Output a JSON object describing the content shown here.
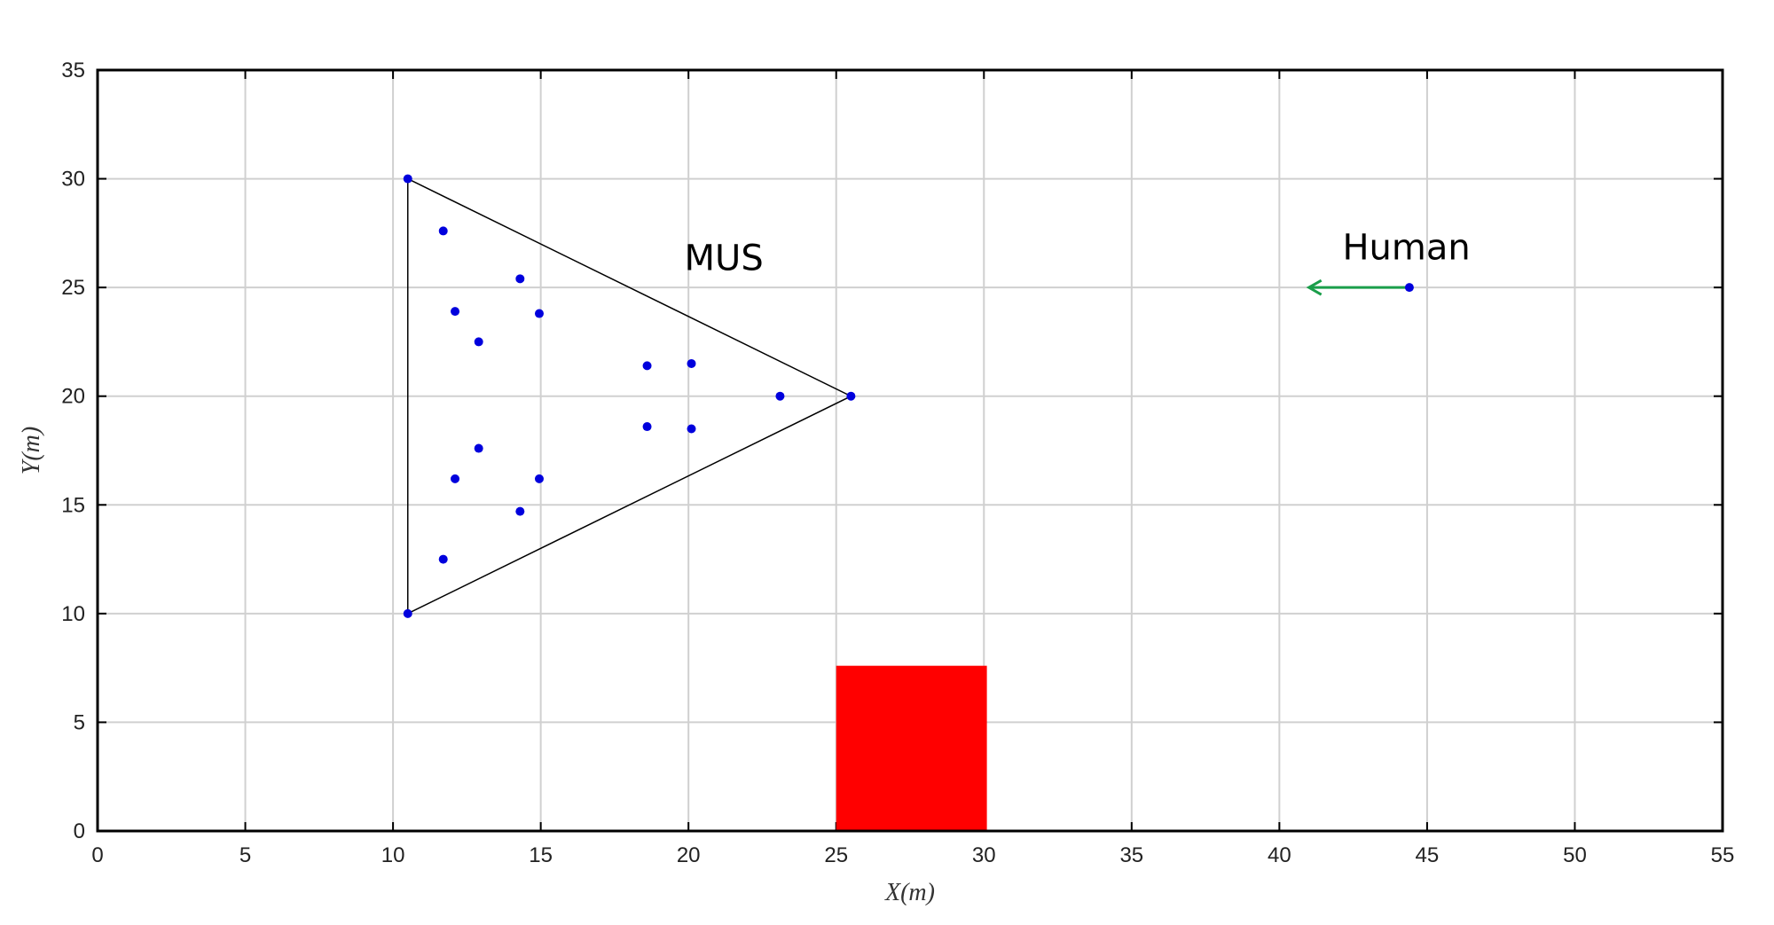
{
  "chart_data": {
    "type": "scatter",
    "title": "",
    "xlabel": "X(m)",
    "ylabel": "Y(m)",
    "xlim": [
      0,
      55
    ],
    "ylim": [
      0,
      35
    ],
    "xticks": [
      0,
      5,
      10,
      15,
      20,
      25,
      30,
      35,
      40,
      45,
      50,
      55
    ],
    "yticks": [
      0,
      5,
      10,
      15,
      20,
      25,
      30,
      35
    ],
    "grid": true,
    "colors": {
      "points": "#0000dd",
      "formation_outline": "#000000",
      "obstacle": "#ff0000",
      "arrow": "#1a9e4a",
      "grid": "#d0d0d0",
      "axes": "#000000"
    },
    "points": [
      {
        "x": 10.5,
        "y": 30.0
      },
      {
        "x": 11.7,
        "y": 27.6
      },
      {
        "x": 14.3,
        "y": 25.4
      },
      {
        "x": 12.1,
        "y": 23.9
      },
      {
        "x": 14.95,
        "y": 23.8
      },
      {
        "x": 12.9,
        "y": 22.5
      },
      {
        "x": 18.6,
        "y": 21.4
      },
      {
        "x": 20.1,
        "y": 21.5
      },
      {
        "x": 23.1,
        "y": 20.0
      },
      {
        "x": 25.5,
        "y": 20.0
      },
      {
        "x": 18.6,
        "y": 18.6
      },
      {
        "x": 20.1,
        "y": 18.5
      },
      {
        "x": 12.9,
        "y": 17.6
      },
      {
        "x": 12.1,
        "y": 16.2
      },
      {
        "x": 14.95,
        "y": 16.2
      },
      {
        "x": 14.3,
        "y": 14.7
      },
      {
        "x": 11.7,
        "y": 12.5
      },
      {
        "x": 10.5,
        "y": 10.0
      }
    ],
    "formation_triangle": [
      {
        "x": 10.5,
        "y": 30.0
      },
      {
        "x": 25.5,
        "y": 20.0
      },
      {
        "x": 10.5,
        "y": 10.0
      }
    ],
    "obstacle": {
      "x0": 25.0,
      "x1": 30.1,
      "y0": 0.0,
      "y1": 7.6
    },
    "human": {
      "x": 44.4,
      "y": 25.0,
      "arrow_to": {
        "x": 41.0,
        "y": 25.0
      }
    },
    "annotations": [
      {
        "text": "MUS",
        "x": 21.2,
        "y": 25.8
      },
      {
        "text": "Human",
        "x": 44.3,
        "y": 26.3
      }
    ]
  }
}
